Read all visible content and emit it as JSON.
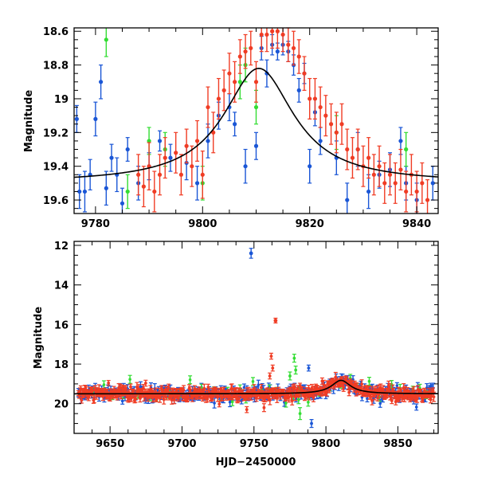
{
  "colors": {
    "blue": "#1a56d6",
    "green": "#33dd33",
    "red": "#f03c24",
    "model": "#000000",
    "axis": "#000000",
    "background": "#ffffff"
  },
  "chart_data": [
    {
      "name": "zoom-panel",
      "type": "scatter",
      "title": "",
      "xlabel": "",
      "ylabel": "Magnitude",
      "xlim": [
        9776,
        9844
      ],
      "ylim": [
        18.58,
        19.68
      ],
      "y_inverted": true,
      "x_ticks_major": [
        9780,
        9800,
        9820,
        9840
      ],
      "x_tick_labels": [
        "9780",
        "9800",
        "9820",
        "9840"
      ],
      "y_ticks_major": [
        18.6,
        18.8,
        19,
        19.2,
        19.4,
        19.6
      ],
      "y_tick_labels": [
        "18.6",
        "18.8",
        "19",
        "19.2",
        "19.4",
        "19.6"
      ],
      "model_curve": {
        "type": "lorentzian",
        "t0": 9810.5,
        "peak_mag": 18.82,
        "baseline_mag": 19.5,
        "width": 8
      },
      "series": [
        {
          "name": "blue",
          "color": "#1a56d6",
          "points": [
            [
              9776.5,
              19.12,
              0.08
            ],
            [
              9777,
              19.55,
              0.1
            ],
            [
              9778,
              19.55,
              0.12
            ],
            [
              9779,
              19.45,
              0.09
            ],
            [
              9780,
              19.12,
              0.1
            ],
            [
              9781,
              18.9,
              0.1
            ],
            [
              9782,
              19.53,
              0.1
            ],
            [
              9783,
              19.35,
              0.08
            ],
            [
              9784,
              19.45,
              0.1
            ],
            [
              9785,
              19.62,
              0.09
            ],
            [
              9786,
              19.3,
              0.07
            ],
            [
              9788,
              19.5,
              0.1
            ],
            [
              9790,
              19.4,
              0.08
            ],
            [
              9792,
              19.25,
              0.06
            ],
            [
              9794,
              19.35,
              0.08
            ],
            [
              9797,
              19.38,
              0.1
            ],
            [
              9799,
              19.5,
              0.1
            ],
            [
              9801,
              19.25,
              0.1
            ],
            [
              9803,
              19.1,
              0.08
            ],
            [
              9805,
              19.05,
              0.08
            ],
            [
              9806,
              19.15,
              0.07
            ],
            [
              9808,
              19.4,
              0.1
            ],
            [
              9810,
              19.28,
              0.08
            ],
            [
              9811,
              18.7,
              0.07
            ],
            [
              9812,
              18.85,
              0.08
            ],
            [
              9813,
              18.68,
              0.06
            ],
            [
              9814,
              18.72,
              0.05
            ],
            [
              9815,
              18.68,
              0.06
            ],
            [
              9816,
              18.72,
              0.06
            ],
            [
              9817,
              18.8,
              0.06
            ],
            [
              9818,
              18.95,
              0.07
            ],
            [
              9819,
              18.85,
              0.06
            ],
            [
              9820,
              19.4,
              0.1
            ],
            [
              9821,
              19.08,
              0.08
            ],
            [
              9822,
              19.25,
              0.08
            ],
            [
              9825,
              19.35,
              0.1
            ],
            [
              9827,
              19.6,
              0.1
            ],
            [
              9829,
              19.3,
              0.1
            ],
            [
              9831,
              19.55,
              0.1
            ],
            [
              9833,
              19.45,
              0.08
            ],
            [
              9835,
              19.42,
              0.1
            ],
            [
              9837,
              19.25,
              0.08
            ],
            [
              9838,
              19.5,
              0.1
            ],
            [
              9840,
              19.6,
              0.1
            ],
            [
              9843,
              19.5,
              0.1
            ]
          ]
        },
        {
          "name": "green",
          "color": "#33dd33",
          "points": [
            [
              9782,
              18.65,
              0.1
            ],
            [
              9786,
              19.55,
              0.1
            ],
            [
              9790,
              19.25,
              0.08
            ],
            [
              9793,
              19.3,
              0.1
            ],
            [
              9800,
              19.5,
              0.1
            ],
            [
              9807,
              18.9,
              0.1
            ],
            [
              9808,
              18.8,
              0.1
            ],
            [
              9810,
              19.05,
              0.1
            ],
            [
              9825,
              19.2,
              0.1
            ],
            [
              9838,
              19.3,
              0.1
            ]
          ]
        },
        {
          "name": "red",
          "color": "#f03c24",
          "points": [
            [
              9788,
              19.45,
              0.12
            ],
            [
              9789,
              19.52,
              0.12
            ],
            [
              9790,
              19.4,
              0.14
            ],
            [
              9791,
              19.55,
              0.12
            ],
            [
              9792,
              19.45,
              0.12
            ],
            [
              9793,
              19.35,
              0.12
            ],
            [
              9795,
              19.32,
              0.12
            ],
            [
              9796,
              19.45,
              0.12
            ],
            [
              9797,
              19.28,
              0.1
            ],
            [
              9798,
              19.4,
              0.12
            ],
            [
              9799,
              19.25,
              0.12
            ],
            [
              9800,
              19.45,
              0.14
            ],
            [
              9801,
              19.05,
              0.12
            ],
            [
              9802,
              19.2,
              0.12
            ],
            [
              9803,
              19.0,
              0.12
            ],
            [
              9804,
              18.95,
              0.12
            ],
            [
              9805,
              18.85,
              0.12
            ],
            [
              9806,
              18.9,
              0.12
            ],
            [
              9807,
              18.75,
              0.1
            ],
            [
              9808,
              18.72,
              0.1
            ],
            [
              9809,
              18.7,
              0.1
            ],
            [
              9810,
              18.9,
              0.12
            ],
            [
              9811,
              18.62,
              0.1
            ],
            [
              9812,
              18.62,
              0.1
            ],
            [
              9813,
              18.6,
              0.1
            ],
            [
              9814,
              18.6,
              0.1
            ],
            [
              9815,
              18.62,
              0.1
            ],
            [
              9816,
              18.68,
              0.1
            ],
            [
              9817,
              18.7,
              0.1
            ],
            [
              9818,
              18.75,
              0.1
            ],
            [
              9819,
              18.85,
              0.1
            ],
            [
              9820,
              19.0,
              0.12
            ],
            [
              9821,
              19.0,
              0.12
            ],
            [
              9822,
              19.05,
              0.12
            ],
            [
              9823,
              19.1,
              0.12
            ],
            [
              9824,
              19.15,
              0.12
            ],
            [
              9825,
              19.2,
              0.12
            ],
            [
              9826,
              19.15,
              0.12
            ],
            [
              9827,
              19.3,
              0.12
            ],
            [
              9828,
              19.35,
              0.12
            ],
            [
              9829,
              19.3,
              0.12
            ],
            [
              9830,
              19.4,
              0.12
            ],
            [
              9831,
              19.35,
              0.12
            ],
            [
              9832,
              19.45,
              0.12
            ],
            [
              9833,
              19.4,
              0.12
            ],
            [
              9834,
              19.5,
              0.12
            ],
            [
              9835,
              19.45,
              0.12
            ],
            [
              9836,
              19.5,
              0.12
            ],
            [
              9837,
              19.42,
              0.12
            ],
            [
              9838,
              19.55,
              0.12
            ],
            [
              9839,
              19.45,
              0.12
            ],
            [
              9840,
              19.55,
              0.12
            ],
            [
              9841,
              19.5,
              0.12
            ],
            [
              9842,
              19.6,
              0.12
            ]
          ]
        }
      ]
    },
    {
      "name": "full-panel",
      "type": "scatter",
      "title": "",
      "xlabel": "HJD−2450000",
      "ylabel": "Magnitude",
      "xlim": [
        9625,
        9878
      ],
      "ylim": [
        11.8,
        21.5
      ],
      "y_inverted": true,
      "x_ticks_major": [
        9650,
        9700,
        9750,
        9800,
        9850
      ],
      "x_tick_labels": [
        "9650",
        "9700",
        "9750",
        "9800",
        "9850"
      ],
      "y_ticks_major": [
        12,
        14,
        16,
        18,
        20
      ],
      "y_tick_labels": [
        "12",
        "14",
        "16",
        "18",
        "20"
      ],
      "model_curve": {
        "type": "lorentzian",
        "t0": 9810.5,
        "peak_mag": 18.82,
        "baseline_mag": 19.5,
        "width": 8
      },
      "outliers": [
        {
          "series": "blue",
          "x": 9748,
          "y": 12.4,
          "err": 0.25
        },
        {
          "series": "red",
          "x": 9765,
          "y": 15.8,
          "err": 0.12
        }
      ],
      "baseline": {
        "x_start": 9628,
        "x_end": 9875,
        "mag": 19.55,
        "scatter": 0.35
      },
      "event_region": {
        "x_start": 9790,
        "x_end": 9835
      }
    }
  ]
}
